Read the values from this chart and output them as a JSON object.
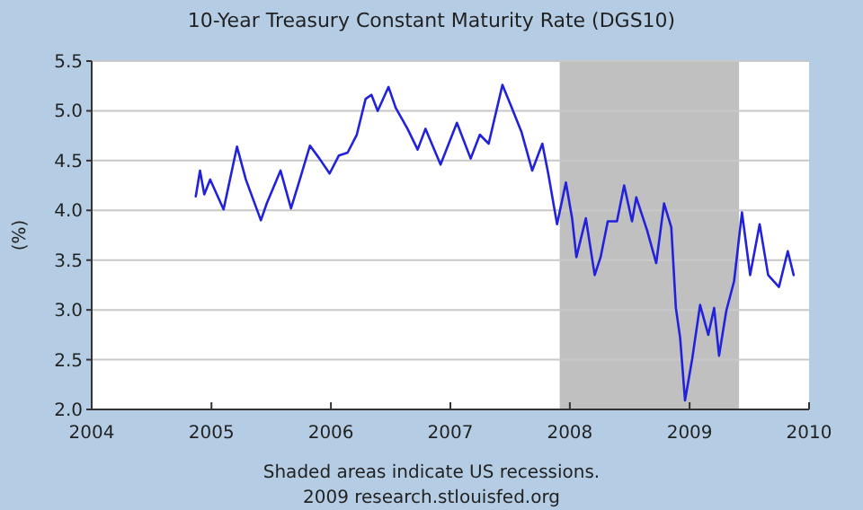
{
  "chart_data": {
    "type": "line",
    "title": "10-Year Treasury Constant Maturity Rate (DGS10)",
    "ylabel": "(%)",
    "x": [
      "2004-11-14",
      "2004-11-27",
      "2004-12-10",
      "2004-12-28",
      "2005-02-07",
      "2005-03-20",
      "2005-04-16",
      "2005-06-01",
      "2005-06-19",
      "2005-07-31",
      "2005-09-01",
      "2005-09-28",
      "2005-10-29",
      "2005-11-27",
      "2005-12-28",
      "2006-01-25",
      "2006-02-21",
      "2006-03-21",
      "2006-04-17",
      "2006-05-05",
      "2006-05-24",
      "2006-06-26",
      "2006-07-18",
      "2006-08-23",
      "2006-09-23",
      "2006-10-17",
      "2006-12-02",
      "2007-01-21",
      "2007-03-04",
      "2007-04-01",
      "2007-04-28",
      "2007-06-09",
      "2007-07-04",
      "2007-08-06",
      "2007-09-08",
      "2007-10-09",
      "2007-10-27",
      "2007-11-23",
      "2007-12-20",
      "2008-01-08",
      "2008-01-21",
      "2008-02-19",
      "2008-03-17",
      "2008-04-04",
      "2008-04-26",
      "2008-05-24",
      "2008-06-15",
      "2008-07-09",
      "2008-07-22",
      "2008-08-24",
      "2008-09-21",
      "2008-10-15",
      "2008-11-06",
      "2008-11-20",
      "2008-12-03",
      "2008-12-18",
      "2009-01-09",
      "2009-02-02",
      "2009-02-27",
      "2009-03-17",
      "2009-04-01",
      "2009-04-23",
      "2009-05-17",
      "2009-06-10",
      "2009-07-05",
      "2009-08-03",
      "2009-08-29",
      "2009-10-01",
      "2009-10-28",
      "2009-11-15"
    ],
    "series": [
      {
        "color": "#2222dd",
        "values": [
          4.14,
          4.4,
          4.16,
          4.31,
          4.01,
          4.64,
          4.31,
          3.9,
          4.07,
          4.4,
          4.02,
          4.31,
          4.65,
          4.52,
          4.37,
          4.55,
          4.58,
          4.76,
          5.12,
          5.16,
          5.0,
          5.24,
          5.03,
          4.82,
          4.61,
          4.82,
          4.46,
          4.88,
          4.52,
          4.76,
          4.67,
          5.26,
          5.06,
          4.79,
          4.4,
          4.67,
          4.37,
          3.86,
          4.28,
          3.92,
          3.53,
          3.92,
          3.35,
          3.53,
          3.89,
          3.89,
          4.25,
          3.89,
          4.13,
          3.8,
          3.47,
          4.07,
          3.83,
          3.02,
          2.72,
          2.09,
          2.51,
          3.05,
          2.75,
          3.02,
          2.54,
          2.99,
          3.29,
          3.98,
          3.35,
          3.86,
          3.35,
          3.23,
          3.59,
          3.35
        ]
      }
    ],
    "xlim": [
      "2004",
      "2010"
    ],
    "xticks": [
      "2004",
      "2005",
      "2006",
      "2007",
      "2008",
      "2009",
      "2010"
    ],
    "ylim": [
      2.0,
      5.5
    ],
    "yticks": [
      {
        "value": 2.0,
        "label": "2.0"
      },
      {
        "value": 2.5,
        "label": "2.5"
      },
      {
        "value": 3.0,
        "label": "3.0"
      },
      {
        "value": 3.5,
        "label": "3.5"
      },
      {
        "value": 4.0,
        "label": "4.0"
      },
      {
        "value": 4.5,
        "label": "4.5"
      },
      {
        "value": 5.0,
        "label": "5.0"
      },
      {
        "value": 5.5,
        "label": "5.5"
      }
    ],
    "grid": "y",
    "bands": [
      {
        "axis": "x",
        "from": "2007-12",
        "to": "2009-06",
        "color": "#c0c0c0"
      }
    ],
    "annotations": [
      "Shaded areas indicate US recessions.",
      "2009 research.stlouisfed.org"
    ]
  }
}
